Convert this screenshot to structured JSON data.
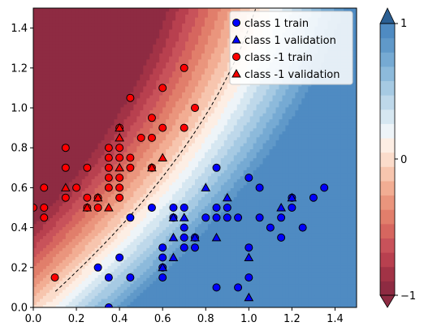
{
  "chart_data": {
    "type": "scatter",
    "title": "",
    "xlabel": "",
    "ylabel": "",
    "xlim": [
      0,
      1.5
    ],
    "ylim": [
      0,
      1.5
    ],
    "xticks": [
      "0.0",
      "0.2",
      "0.4",
      "0.6",
      "0.8",
      "1.0",
      "1.2",
      "1.4"
    ],
    "yticks": [
      "0.0",
      "0.2",
      "0.4",
      "0.6",
      "0.8",
      "1.0",
      "1.2",
      "1.4"
    ],
    "grid": false,
    "legend_position": "upper-right",
    "background": "filled decision-function contours, red (class -1 side) to blue (class 1 side), dashed zero-level boundary",
    "colorbar": {
      "range": [
        -1,
        1
      ],
      "ticks": [
        "−1",
        "0",
        "1"
      ],
      "extend": "both",
      "colormap": "RdBu"
    },
    "series": [
      {
        "name": "class 1 train",
        "marker": "circle",
        "color": "#0000ff",
        "points": [
          [
            0.3,
            0.2
          ],
          [
            0.35,
            0.15
          ],
          [
            0.35,
            0.0
          ],
          [
            0.4,
            0.25
          ],
          [
            0.45,
            0.45
          ],
          [
            0.45,
            0.15
          ],
          [
            0.55,
            0.5
          ],
          [
            0.6,
            0.2
          ],
          [
            0.6,
            0.15
          ],
          [
            0.6,
            0.25
          ],
          [
            0.6,
            0.3
          ],
          [
            0.65,
            0.45
          ],
          [
            0.65,
            0.5
          ],
          [
            0.7,
            0.3
          ],
          [
            0.7,
            0.35
          ],
          [
            0.7,
            0.4
          ],
          [
            0.7,
            0.5
          ],
          [
            0.75,
            0.35
          ],
          [
            0.75,
            0.3
          ],
          [
            0.8,
            0.45
          ],
          [
            0.85,
            0.7
          ],
          [
            0.85,
            0.5
          ],
          [
            0.85,
            0.45
          ],
          [
            0.85,
            0.1
          ],
          [
            0.9,
            0.5
          ],
          [
            0.9,
            0.45
          ],
          [
            0.95,
            0.45
          ],
          [
            0.95,
            0.1
          ],
          [
            1.0,
            0.65
          ],
          [
            1.0,
            0.3
          ],
          [
            1.0,
            0.15
          ],
          [
            1.05,
            0.6
          ],
          [
            1.05,
            0.45
          ],
          [
            1.1,
            0.4
          ],
          [
            1.15,
            0.45
          ],
          [
            1.15,
            0.35
          ],
          [
            1.2,
            0.55
          ],
          [
            1.2,
            0.5
          ],
          [
            1.25,
            0.4
          ],
          [
            1.3,
            0.55
          ],
          [
            1.35,
            0.6
          ]
        ]
      },
      {
        "name": "class 1 validation",
        "marker": "triangle",
        "color": "#0000ff",
        "points": [
          [
            0.6,
            0.2
          ],
          [
            0.65,
            0.45
          ],
          [
            0.65,
            0.35
          ],
          [
            0.65,
            0.25
          ],
          [
            0.7,
            0.45
          ],
          [
            0.75,
            0.35
          ],
          [
            0.8,
            0.6
          ],
          [
            0.85,
            0.35
          ],
          [
            0.9,
            0.55
          ],
          [
            1.0,
            0.25
          ],
          [
            1.0,
            0.05
          ],
          [
            1.15,
            0.5
          ],
          [
            1.2,
            0.55
          ]
        ]
      },
      {
        "name": "class -1 train",
        "marker": "circle",
        "color": "#ff0000",
        "points": [
          [
            0.0,
            0.5
          ],
          [
            0.05,
            0.6
          ],
          [
            0.05,
            0.5
          ],
          [
            0.05,
            0.45
          ],
          [
            0.1,
            0.15
          ],
          [
            0.15,
            0.8
          ],
          [
            0.15,
            0.7
          ],
          [
            0.15,
            0.55
          ],
          [
            0.2,
            0.6
          ],
          [
            0.25,
            0.7
          ],
          [
            0.25,
            0.55
          ],
          [
            0.25,
            0.5
          ],
          [
            0.3,
            0.55
          ],
          [
            0.3,
            0.5
          ],
          [
            0.35,
            0.8
          ],
          [
            0.35,
            0.75
          ],
          [
            0.35,
            0.7
          ],
          [
            0.35,
            0.65
          ],
          [
            0.35,
            0.6
          ],
          [
            0.4,
            0.9
          ],
          [
            0.4,
            0.8
          ],
          [
            0.4,
            0.75
          ],
          [
            0.4,
            0.65
          ],
          [
            0.4,
            0.6
          ],
          [
            0.4,
            0.55
          ],
          [
            0.45,
            1.05
          ],
          [
            0.45,
            0.75
          ],
          [
            0.45,
            0.7
          ],
          [
            0.5,
            0.85
          ],
          [
            0.55,
            0.95
          ],
          [
            0.55,
            0.85
          ],
          [
            0.55,
            0.7
          ],
          [
            0.6,
            1.1
          ],
          [
            0.6,
            0.9
          ],
          [
            0.7,
            1.2
          ],
          [
            0.7,
            0.9
          ],
          [
            0.75,
            1.0
          ]
        ]
      },
      {
        "name": "class -1 validation",
        "marker": "triangle",
        "color": "#ff0000",
        "points": [
          [
            0.15,
            0.6
          ],
          [
            0.25,
            0.5
          ],
          [
            0.3,
            0.55
          ],
          [
            0.35,
            0.5
          ],
          [
            0.4,
            0.9
          ],
          [
            0.4,
            0.85
          ],
          [
            0.4,
            0.7
          ],
          [
            0.55,
            0.7
          ],
          [
            0.6,
            0.75
          ]
        ]
      }
    ]
  }
}
